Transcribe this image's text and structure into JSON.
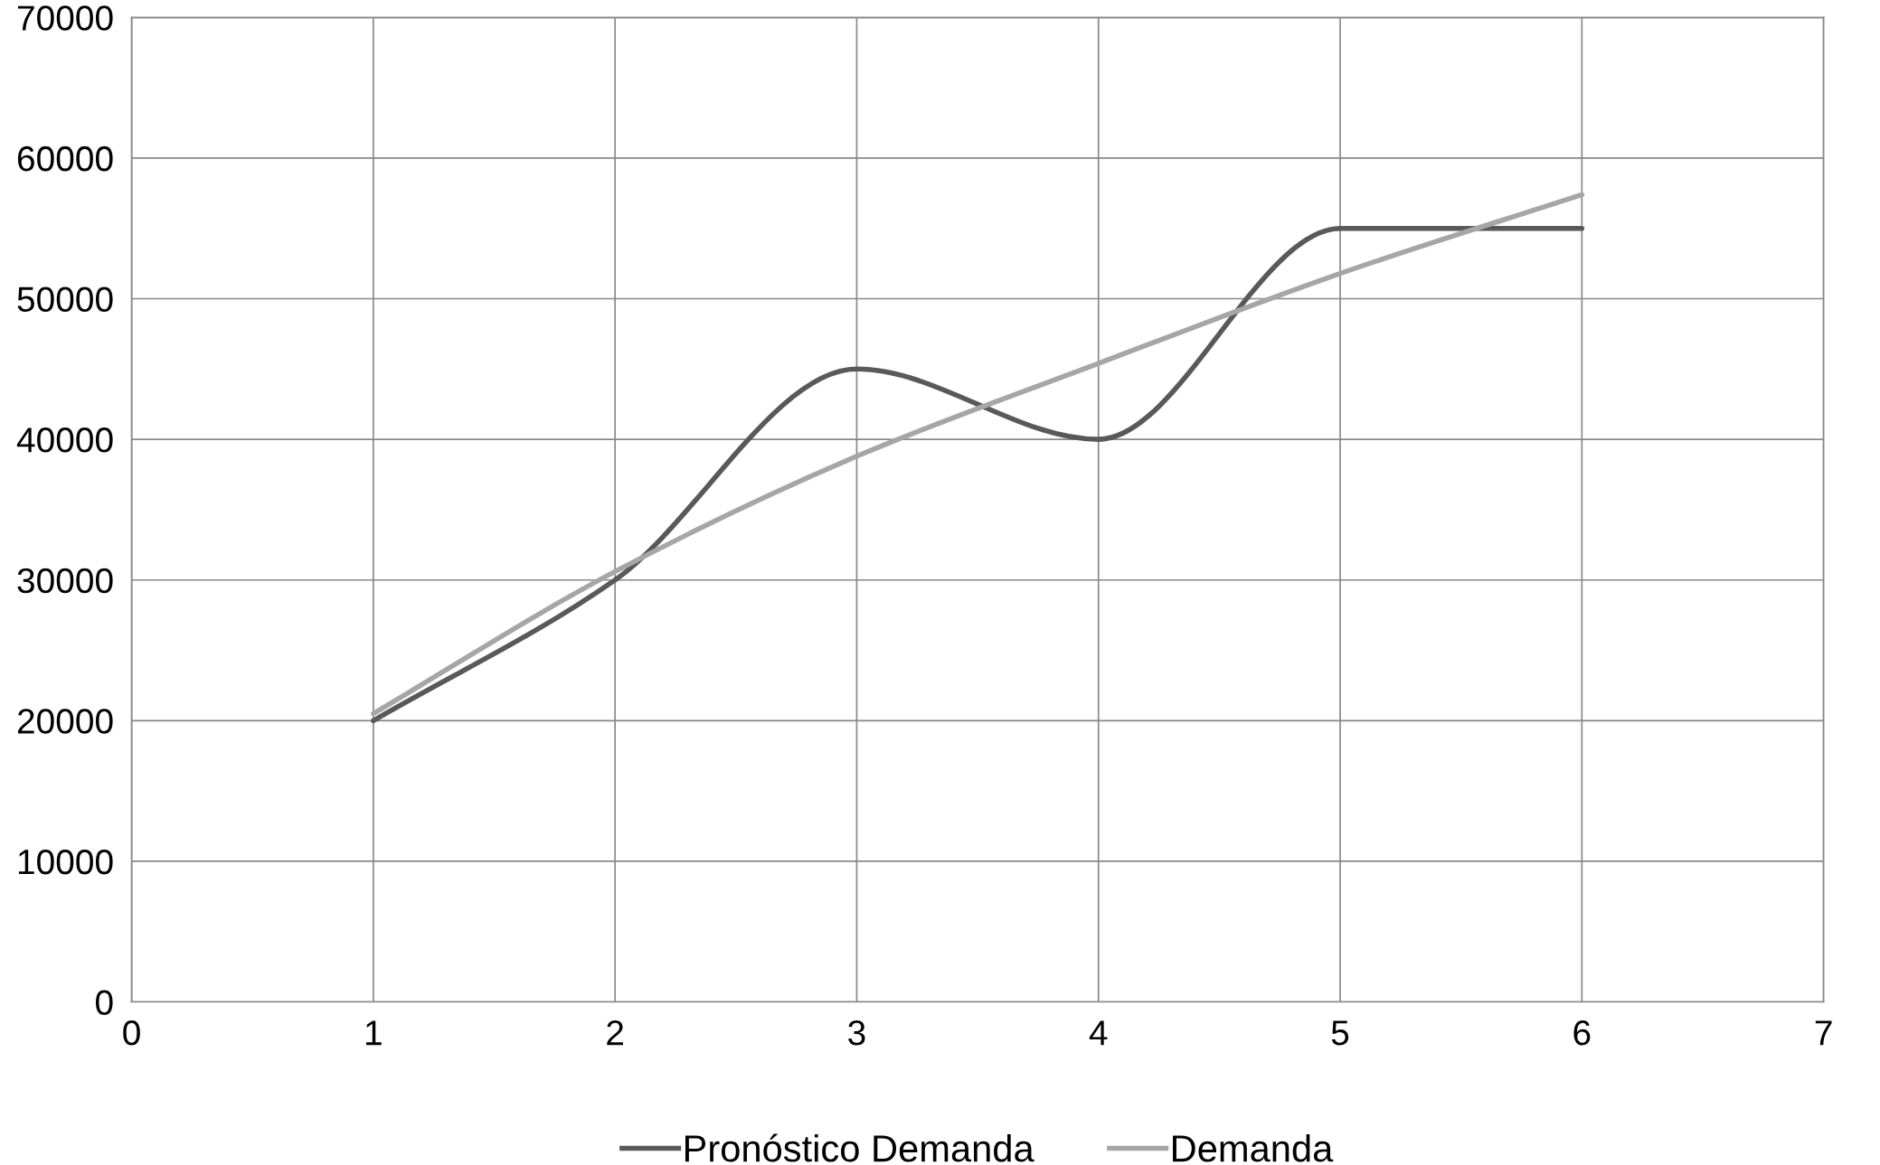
{
  "chart_data": {
    "type": "line",
    "x": [
      1,
      2,
      3,
      4,
      5,
      6
    ],
    "series": [
      {
        "name": "Pronóstico Demanda",
        "color": "#595959",
        "values": [
          20000,
          30000,
          45000,
          40000,
          55000,
          55000
        ]
      },
      {
        "name": "Demanda",
        "color": "#a6a6a6",
        "values": [
          20500,
          30600,
          38800,
          45400,
          51800,
          57400
        ]
      }
    ],
    "xlim": [
      0,
      7
    ],
    "xticks": [
      0,
      1,
      2,
      3,
      4,
      5,
      6,
      7
    ],
    "ylim": [
      0,
      70000
    ],
    "yticks": [
      0,
      10000,
      20000,
      30000,
      40000,
      50000,
      60000,
      70000
    ],
    "grid": true,
    "legend": "bottom",
    "marker": "none",
    "line_style": "solid"
  }
}
